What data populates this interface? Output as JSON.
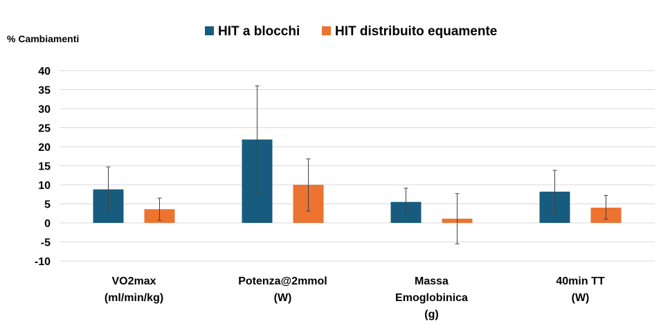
{
  "chart_data": {
    "type": "bar",
    "title": "",
    "ylabel": "% Cambiamenti",
    "xlabel": "",
    "ylim": [
      -10,
      40
    ],
    "yticks": [
      40,
      35,
      30,
      25,
      20,
      15,
      10,
      5,
      0,
      -5,
      -10
    ],
    "grid": true,
    "legend_position": "top",
    "categories": [
      [
        "VO2max",
        "(ml/min/kg)"
      ],
      [
        "Potenza@2mmol",
        "(W)"
      ],
      [
        "Massa",
        "Emoglobinica",
        "(g)"
      ],
      [
        "40min TT",
        "(W)"
      ]
    ],
    "series": [
      {
        "name": "HIT a blocchi",
        "color": "#175c7e",
        "values": [
          8.8,
          21.9,
          5.5,
          8.2
        ],
        "error_low": [
          3.0,
          8.0,
          1.9,
          2.6
        ],
        "error_high": [
          14.7,
          36.0,
          9.1,
          13.8
        ]
      },
      {
        "name": "HIT distribuito equamente",
        "color": "#ec7330",
        "values": [
          3.6,
          10.0,
          1.1,
          4.0
        ],
        "error_low": [
          0.7,
          3.1,
          -5.5,
          1.0
        ],
        "error_high": [
          6.5,
          16.8,
          7.7,
          7.2
        ]
      }
    ]
  }
}
